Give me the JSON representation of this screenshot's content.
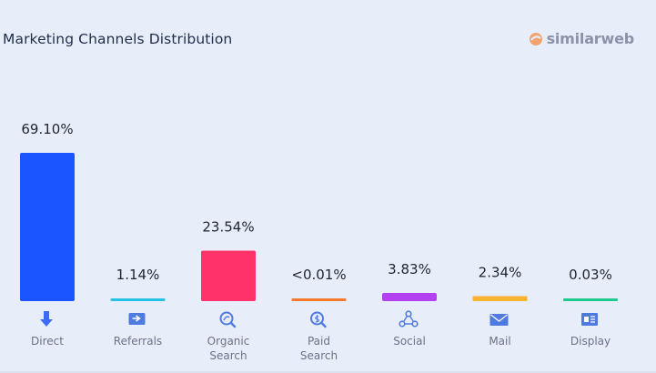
{
  "header": {
    "title": "Marketing Channels Distribution",
    "logo_text": "similarweb",
    "logo_icon": "similarweb-logo-icon"
  },
  "chart_data": {
    "type": "bar",
    "title": "Marketing Channels Distribution",
    "categories": [
      "Direct",
      "Referrals",
      "Organic Search",
      "Paid Search",
      "Social",
      "Mail",
      "Display"
    ],
    "category_lines": [
      [
        "Direct"
      ],
      [
        "Referrals"
      ],
      [
        "Organic",
        "Search"
      ],
      [
        "Paid",
        "Search"
      ],
      [
        "Social"
      ],
      [
        "Mail"
      ],
      [
        "Display"
      ]
    ],
    "values": [
      69.1,
      1.14,
      23.54,
      0.01,
      3.83,
      2.34,
      0.03
    ],
    "value_labels": [
      "69.10%",
      "1.14%",
      "23.54%",
      "<0.01%",
      "3.83%",
      "2.34%",
      "0.03%"
    ],
    "colors": [
      "#1a55ff",
      "#27c3e6",
      "#ff3369",
      "#f4792b",
      "#b341f0",
      "#fbb330",
      "#1ecb8c"
    ],
    "icons": [
      "direct-arrow-icon",
      "referrals-icon",
      "organic-search-icon",
      "paid-search-icon",
      "social-icon",
      "mail-icon",
      "display-icon"
    ],
    "ylim": [
      0,
      69.1
    ],
    "xlabel": "",
    "ylabel": "",
    "grid": false,
    "legend": "none"
  }
}
